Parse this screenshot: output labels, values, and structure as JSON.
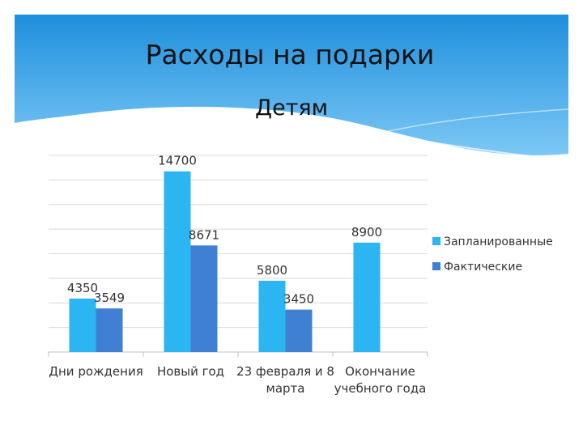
{
  "slide": {
    "title": "Расходы на подарки",
    "subtitle": "Детям"
  },
  "colors": {
    "header_top": "#1e8fdc",
    "header_bottom": "#7cc8f5",
    "planned": "#2bb5f2",
    "actual": "#4080d2",
    "gridline": "#d9d9d9"
  },
  "chart_data": {
    "type": "bar",
    "categories": [
      [
        "Дни рождения"
      ],
      [
        "Новый год"
      ],
      [
        "23 февраля и 8",
        "марта"
      ],
      [
        "Окончание",
        "учебного года"
      ]
    ],
    "series": [
      {
        "name": "Запланированные",
        "values": [
          4350,
          14700,
          5800,
          8900
        ]
      },
      {
        "name": "Фактические",
        "values": [
          3549,
          8671,
          3450,
          null
        ]
      }
    ],
    "ylim": [
      0,
      16000
    ],
    "grid": true,
    "legend": "right"
  }
}
